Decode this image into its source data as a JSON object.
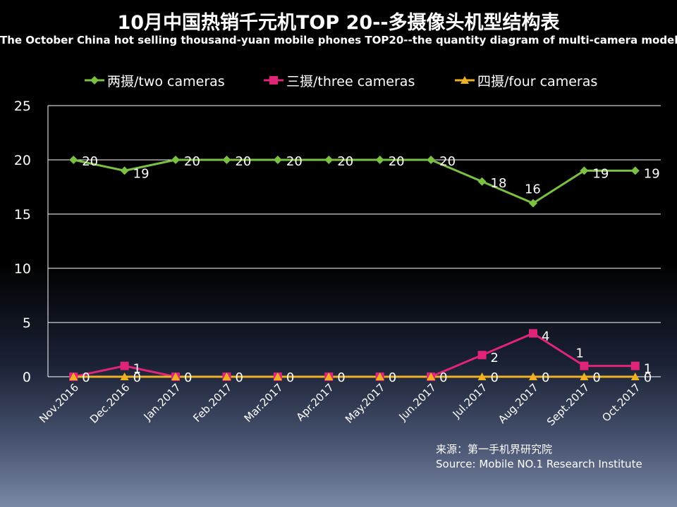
{
  "chart_data": {
    "type": "line",
    "title": "10月中国热销千元机TOP 20--多摄像头机型结构表",
    "subtitle": "The October China hot selling thousand-yuan mobile phones TOP20--the quantity diagram of multi-camera models",
    "categories": [
      "Nov.2016",
      "Dec.2016",
      "Jan.2017",
      "Feb.2017",
      "Mar.2017",
      "Apr.2017",
      "May.2017",
      "Jun.2017",
      "Jul.2017",
      "Aug.2017",
      "Sept.2017",
      "Oct.2017"
    ],
    "series": [
      {
        "name": "两摄/two cameras",
        "marker": "diamond",
        "color": "#7ac143",
        "values": [
          20,
          19,
          20,
          20,
          20,
          20,
          20,
          20,
          18,
          16,
          19,
          19
        ]
      },
      {
        "name": "三摄/three cameras",
        "marker": "square",
        "color": "#e0247a",
        "values": [
          0,
          1,
          0,
          0,
          0,
          0,
          0,
          0,
          2,
          4,
          1,
          1
        ]
      },
      {
        "name": "四摄/four cameras",
        "marker": "triangle",
        "color": "#f0b021",
        "values": [
          0,
          0,
          0,
          0,
          0,
          0,
          0,
          0,
          0,
          0,
          0,
          0
        ]
      }
    ],
    "ylim": [
      0,
      25
    ],
    "yticks": [
      0,
      5,
      10,
      15,
      20,
      25
    ],
    "xlabel": "",
    "ylabel": "",
    "grid": true
  },
  "source": {
    "line1": "来源：第一手机界研究院",
    "line2": "Source: Mobile NO.1 Research Institute"
  }
}
